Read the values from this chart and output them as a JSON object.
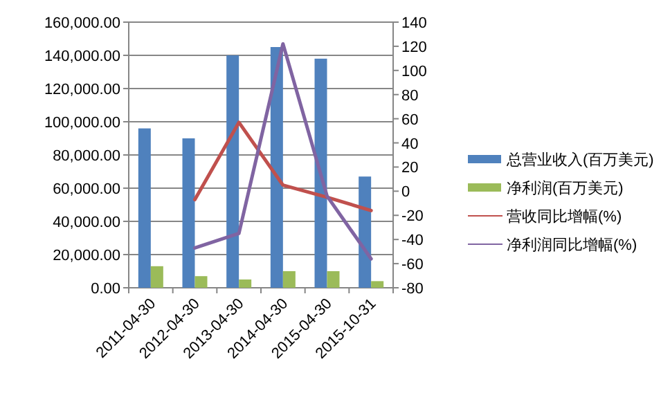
{
  "chart_data": {
    "type": "bar",
    "categories": [
      "2011-04-30",
      "2012-04-30",
      "2013-04-30",
      "2014-04-30",
      "2015-04-30",
      "2015-10-31"
    ],
    "series": [
      {
        "name": "总营业收入(百万美元)",
        "color": "#4f81bd",
        "values": [
          96000,
          90000,
          140000,
          145000,
          138000,
          67000
        ]
      },
      {
        "name": "净利润(百万美元)",
        "color": "#9bbb59",
        "values": [
          13000,
          7000,
          5000,
          10000,
          10000,
          4000
        ]
      },
      {
        "name": "营收同比增幅(%)",
        "type": "line",
        "axis": "y2",
        "color": "#c0504d",
        "values": [
          null,
          -7,
          57,
          5,
          -5,
          -16
        ]
      },
      {
        "name": "净利润同比增幅(%)",
        "type": "line",
        "axis": "y2",
        "color": "#8064a2",
        "values": [
          null,
          -47,
          -35,
          122,
          -4,
          -56
        ]
      }
    ],
    "ylim": [
      0,
      160000
    ],
    "yticks": [
      {
        "value": 0,
        "label": "0.00"
      },
      {
        "value": 20000,
        "label": "20,000.00"
      },
      {
        "value": 40000,
        "label": "40,000.00"
      },
      {
        "value": 60000,
        "label": "60,000.00"
      },
      {
        "value": 80000,
        "label": "80,000.00"
      },
      {
        "value": 100000,
        "label": "100,000.00"
      },
      {
        "value": 120000,
        "label": "120,000.00"
      },
      {
        "value": 140000,
        "label": "140,000.00"
      },
      {
        "value": 160000,
        "label": "160,000.00"
      }
    ],
    "y2lim": [
      -80,
      140
    ],
    "y2ticks": [
      -80,
      -60,
      -40,
      -20,
      0,
      20,
      40,
      60,
      80,
      100,
      120,
      140
    ],
    "grid": "y",
    "legend": "right"
  }
}
